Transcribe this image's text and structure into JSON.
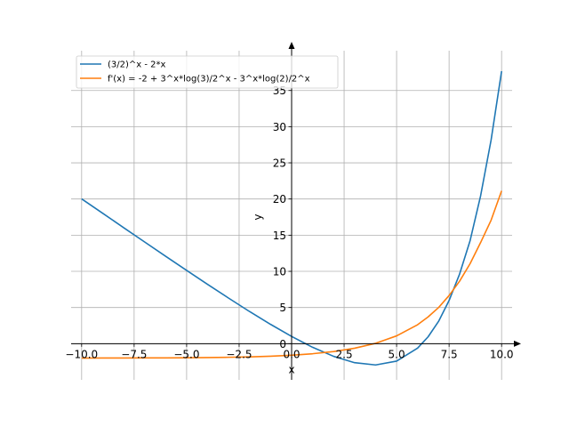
{
  "chart_data": {
    "type": "line",
    "title": "",
    "xlabel": "x",
    "ylabel": "y",
    "xlim": [
      -10.5,
      10.5
    ],
    "ylim": [
      -5.0,
      40.5
    ],
    "grid": true,
    "legend_position": "top-left",
    "x_ticks": [
      -10.0,
      -7.5,
      -5.0,
      -2.5,
      0.0,
      2.5,
      5.0,
      7.5,
      10.0
    ],
    "x_tick_labels": [
      "−10.0",
      "−7.5",
      "−5.0",
      "−2.5",
      "0.0",
      "2.5",
      "5.0",
      "7.5",
      "10.0"
    ],
    "y_ticks": [
      0,
      5,
      10,
      15,
      20,
      25,
      30,
      35
    ],
    "y_tick_labels": [
      "0",
      "5",
      "10",
      "15",
      "20",
      "25",
      "30",
      "35"
    ],
    "series": [
      {
        "name": "(3/2)^x - 2*x",
        "color": "#1f77b4",
        "x": [
          -10,
          -9,
          -8,
          -7,
          -6,
          -5,
          -4,
          -3,
          -2,
          -1,
          0,
          1,
          2,
          3,
          4,
          5,
          6,
          6.5,
          7,
          7.5,
          8,
          8.5,
          9,
          9.5,
          10
        ],
        "y": [
          20.02,
          18.03,
          16.04,
          14.06,
          12.09,
          10.13,
          8.2,
          6.3,
          4.44,
          2.67,
          1.0,
          -0.5,
          -1.75,
          -2.63,
          -2.94,
          -2.41,
          -0.61,
          0.95,
          3.09,
          5.97,
          9.63,
          14.25,
          20.44,
          28.16,
          37.67
        ]
      },
      {
        "name": "f'(x) = -2 + 3^x*log(3)/2^x - 3^x*log(2)/2^x",
        "color": "#ff7f0e",
        "x": [
          -10,
          -9,
          -8,
          -7,
          -6,
          -5,
          -4,
          -3,
          -2,
          -1,
          0,
          1,
          2,
          3,
          4,
          5,
          6,
          6.5,
          7,
          7.5,
          8,
          8.5,
          9,
          9.5,
          10
        ],
        "y": [
          -1.99,
          -1.98,
          -1.98,
          -1.97,
          -1.96,
          -1.95,
          -1.92,
          -1.88,
          -1.82,
          -1.73,
          -1.59,
          -1.39,
          -1.09,
          -0.63,
          0.05,
          1.08,
          2.62,
          3.7,
          5.0,
          6.66,
          8.64,
          11.06,
          13.98,
          17.07,
          21.13
        ]
      }
    ]
  }
}
